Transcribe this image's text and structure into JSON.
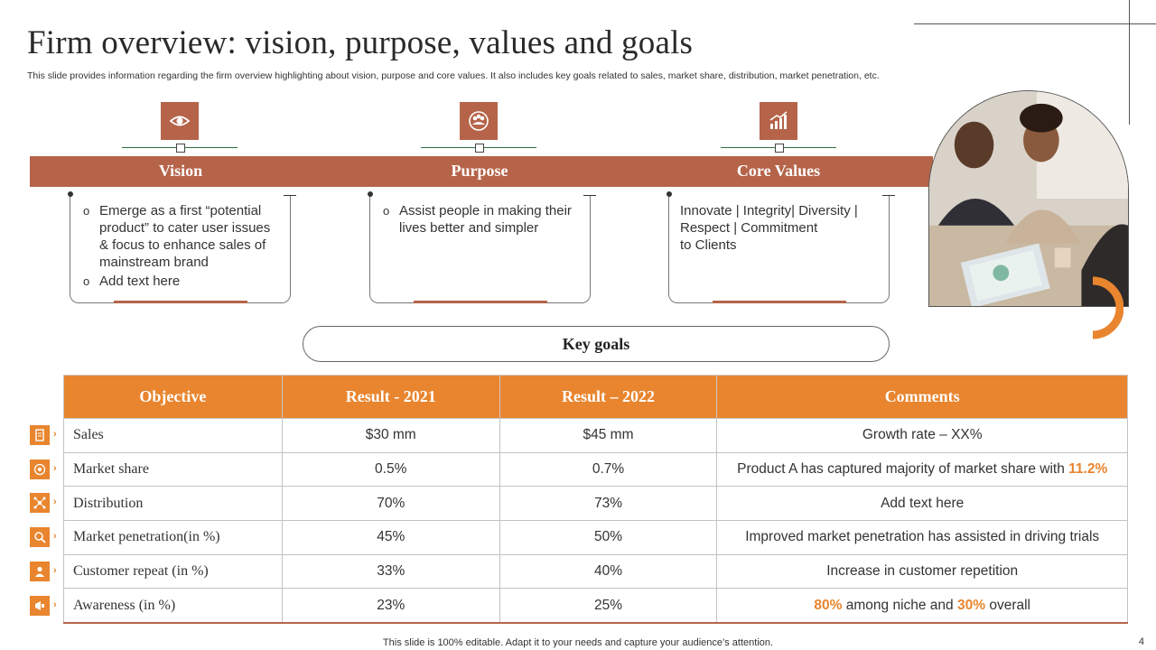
{
  "slide": {
    "title": "Firm overview: vision, purpose, values and goals",
    "subtitle": "This slide provides information regarding the firm overview highlighting about vision, purpose and core values. It also includes key goals related to sales, market share, distribution, market penetration, etc.",
    "footer": "This slide is 100% editable. Adapt it to your needs and capture your audience’s attention.",
    "page_number": "4"
  },
  "colors": {
    "brown": "#b5644a",
    "orange": "#e8852e",
    "green_line": "#2e6e3e"
  },
  "pillars": [
    {
      "label": "Vision",
      "icon": "eye-icon",
      "points": [
        "Emerge as a first “potential product” to cater user issues & focus to enhance sales of mainstream brand",
        "Add text here"
      ]
    },
    {
      "label": "Purpose",
      "icon": "people-icon",
      "points": [
        "Assist people in making their lives better and simpler"
      ]
    },
    {
      "label": "Core Values",
      "icon": "growth-chart-icon",
      "text_lines": [
        "Innovate  | Integrity|  Diversity |",
        "Respect |  Commitment",
        "to Clients"
      ]
    }
  ],
  "key_goals": {
    "title": "Key goals",
    "columns": [
      "Objective",
      "Result - 2021",
      "Result – 2022",
      "Comments"
    ],
    "rows": [
      {
        "icon": "document-icon",
        "objective": "Sales",
        "r2021": "$30 mm",
        "r2022": "$45 mm",
        "comment": "Growth rate – XX%"
      },
      {
        "icon": "target-icon",
        "objective": "Market share",
        "r2021": "0.5%",
        "r2022": "0.7%",
        "comment_pre": "Product A has captured majority of market share with ",
        "comment_hl": "11.2%"
      },
      {
        "icon": "network-icon",
        "objective": "Distribution",
        "r2021": "70%",
        "r2022": "73%",
        "comment": "Add text here"
      },
      {
        "icon": "magnifier-icon",
        "objective": "Market penetration(in %)",
        "r2021": "45%",
        "r2022": "50%",
        "comment": "Improved market penetration has assisted in driving trials"
      },
      {
        "icon": "customer-icon",
        "objective": "Customer repeat (in %)",
        "r2021": "33%",
        "r2022": "40%",
        "comment": "Increase in customer repetition"
      },
      {
        "icon": "megaphone-icon",
        "objective": "Awareness (in %)",
        "r2021": "23%",
        "r2022": "25%",
        "comment_hl1": "80%",
        "comment_mid": " among niche and ",
        "comment_hl2": "30%",
        "comment_post": " overall"
      }
    ]
  }
}
